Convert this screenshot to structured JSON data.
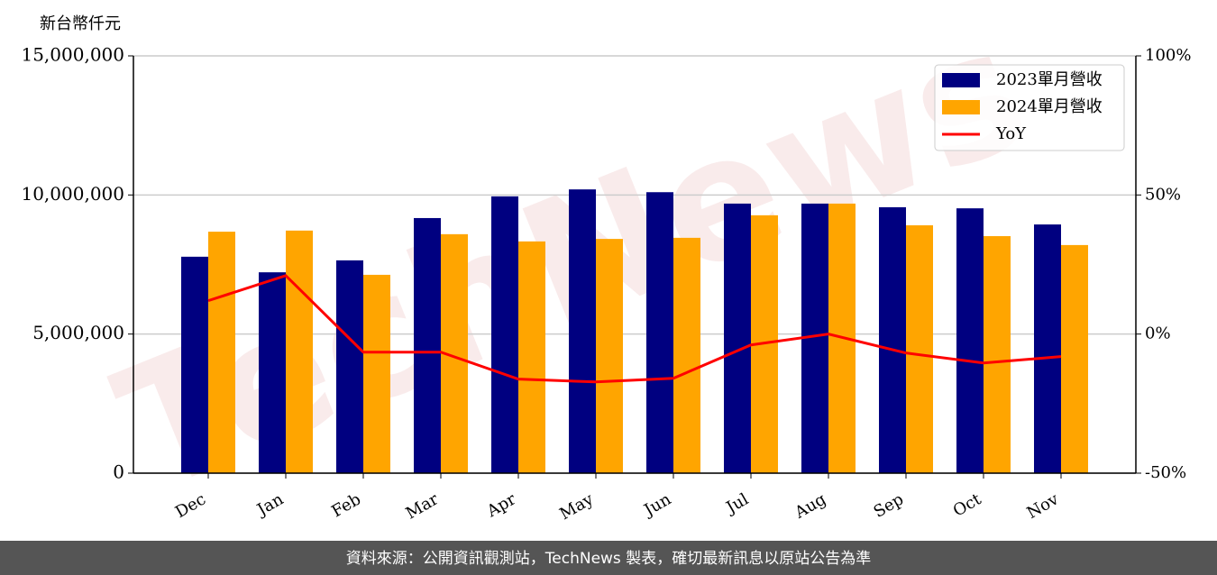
{
  "chart_data": {
    "type": "bar",
    "unit_label": "新台幣仟元",
    "watermark": "TechNews",
    "footer": "資料來源：公開資訊觀測站，TechNews 製表，確切最新訊息以原站公告為準",
    "categories": [
      "Dec",
      "Jan",
      "Feb",
      "Mar",
      "Apr",
      "May",
      "Jun",
      "Jul",
      "Aug",
      "Sep",
      "Oct",
      "Nov"
    ],
    "series": [
      {
        "name": "2023單月營收",
        "color": "#000080",
        "values": [
          7780000,
          7220000,
          7650000,
          9170000,
          9950000,
          10200000,
          10100000,
          9690000,
          9690000,
          9560000,
          9520000,
          8940000
        ]
      },
      {
        "name": "2024單月營收",
        "color": "#ffa500",
        "values": [
          8680000,
          8720000,
          7130000,
          8590000,
          8330000,
          8420000,
          8460000,
          9270000,
          9690000,
          8910000,
          8520000,
          8200000
        ]
      },
      {
        "name": "YoY",
        "color": "#ff0000",
        "type": "line",
        "axis": "y2",
        "values": [
          12,
          21,
          -6.5,
          -6.5,
          -16.2,
          -17.2,
          -15.9,
          -3.9,
          0,
          -6.8,
          -10.4,
          -8.1
        ]
      }
    ],
    "ylim": [
      0,
      15000000
    ],
    "yticks": [
      0,
      {
        "value": 5000000,
        "label": "5,000,000"
      },
      {
        "value": 10000000,
        "label": "10,000,000"
      },
      {
        "value": 15000000,
        "label": "15,000,000"
      }
    ],
    "y2lim": [
      -50,
      100
    ],
    "y2ticks": [
      {
        "value": -50,
        "label": "-50%"
      },
      {
        "value": 0,
        "label": "0%"
      },
      {
        "value": 50,
        "label": "50%"
      },
      {
        "value": 100,
        "label": "100%"
      }
    ],
    "grid": true,
    "legend": "upper right"
  }
}
